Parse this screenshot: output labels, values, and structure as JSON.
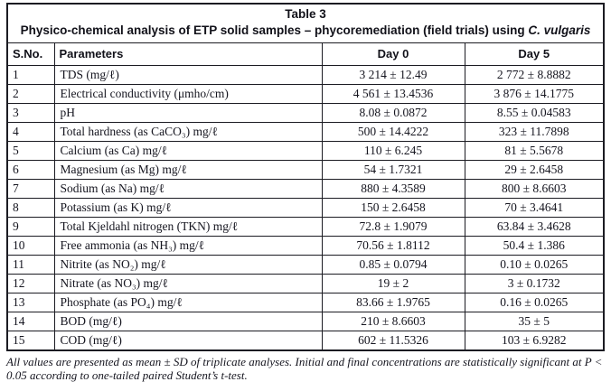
{
  "table": {
    "title": "Table 3",
    "caption_main": "Physico-chemical analysis of ETP solid samples – phycoremediation (field trials) using ",
    "caption_species": "C. vulgaris",
    "columns": [
      "S.No.",
      "Parameters",
      "Day 0",
      "Day 5"
    ],
    "rows": [
      {
        "sno": "1",
        "parameter": "TDS (mg/ℓ)",
        "day0": "3 214 ± 12.49",
        "day5": "2 772 ± 8.8882"
      },
      {
        "sno": "2",
        "parameter": "Electrical conductivity (μmho/cm)",
        "day0": "4 561 ± 13.4536",
        "day5": "3 876 ± 14.1775"
      },
      {
        "sno": "3",
        "parameter": "pH",
        "day0": "8.08 ± 0.0872",
        "day5": "8.55 ± 0.04583"
      },
      {
        "sno": "4",
        "parameter": "Total hardness (as CaCO₃) mg/ℓ",
        "day0": "500 ± 14.4222",
        "day5": "323 ± 11.7898"
      },
      {
        "sno": "5",
        "parameter": "Calcium (as Ca) mg/ℓ",
        "day0": "110 ± 6.245",
        "day5": "81 ± 5.5678"
      },
      {
        "sno": "6",
        "parameter": "Magnesium (as Mg) mg/ℓ",
        "day0": "54 ± 1.7321",
        "day5": "29 ± 2.6458"
      },
      {
        "sno": "7",
        "parameter": "Sodium (as Na) mg/ℓ",
        "day0": "880 ± 4.3589",
        "day5": "800 ± 8.6603"
      },
      {
        "sno": "8",
        "parameter": "Potassium (as K) mg/ℓ",
        "day0": "150 ± 2.6458",
        "day5": "70 ± 3.4641"
      },
      {
        "sno": "9",
        "parameter": "Total Kjeldahl nitrogen (TKN) mg/ℓ",
        "day0": "72.8 ± 1.9079",
        "day5": "63.84 ± 3.4628"
      },
      {
        "sno": "10",
        "parameter": "Free ammonia (as NH₃) mg/ℓ",
        "day0": "70.56 ± 1.8112",
        "day5": "50.4 ± 1.386"
      },
      {
        "sno": "11",
        "parameter": "Nitrite (as NO₂) mg/ℓ",
        "day0": "0.85 ± 0.0794",
        "day5": "0.10 ± 0.0265"
      },
      {
        "sno": "12",
        "parameter": "Nitrate (as NO₃) mg/ℓ",
        "day0": "19 ± 2",
        "day5": "3 ± 0.1732"
      },
      {
        "sno": "13",
        "parameter": "Phosphate (as PO₄) mg/ℓ",
        "day0": "83.66 ± 1.9765",
        "day5": "0.16 ± 0.0265"
      },
      {
        "sno": "14",
        "parameter": "BOD (mg/ℓ)",
        "day0": "210 ± 8.6603",
        "day5": "35 ± 5"
      },
      {
        "sno": "15",
        "parameter": "COD (mg/ℓ)",
        "day0": "602 ± 11.5326",
        "day5": "103 ± 6.9282"
      }
    ]
  },
  "footnote": {
    "text": "All values are presented as mean ± SD of triplicate analyses. Initial and final concentrations are statistically significant at P < 0.05 according to one-tailed paired Student’s t-test."
  },
  "colors": {
    "text": "#15151f",
    "border": "#1b1b22",
    "background": "#ffffff"
  }
}
